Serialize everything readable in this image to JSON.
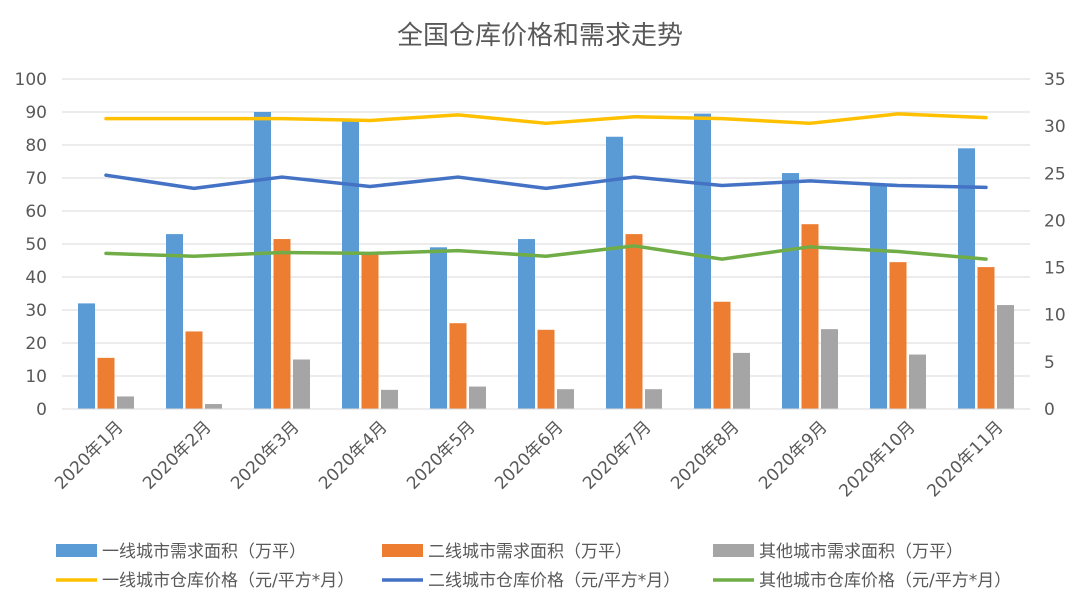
{
  "chart_data": {
    "type": "bar",
    "title": "全国仓库价格和需求走势",
    "categories": [
      "2020年1月",
      "2020年2月",
      "2020年3月",
      "2020年4月",
      "2020年5月",
      "2020年6月",
      "2020年7月",
      "2020年8月",
      "2020年9月",
      "2020年10月",
      "2020年11月"
    ],
    "y_left": {
      "ylim": [
        0,
        100
      ],
      "ticks": [
        0,
        10,
        20,
        30,
        40,
        50,
        60,
        70,
        80,
        90,
        100
      ]
    },
    "y_right": {
      "ylim": [
        0,
        35
      ],
      "ticks": [
        0,
        5,
        10,
        15,
        20,
        25,
        30,
        35
      ]
    },
    "grid": true,
    "legend_position": "bottom",
    "bar_series": [
      {
        "name": "一线城市需求面积（万平）",
        "color": "#5b9bd5",
        "axis": "left",
        "values": [
          32,
          53,
          90,
          88,
          49,
          51.5,
          82.5,
          89.5,
          71.5,
          68,
          79
        ]
      },
      {
        "name": "二线城市需求面积（万平）",
        "color": "#ed7d31",
        "axis": "left",
        "values": [
          15.5,
          23.5,
          51.5,
          47,
          26,
          24,
          53,
          32.5,
          56,
          44.5,
          43
        ]
      },
      {
        "name": "其他城市需求面积（万平）",
        "color": "#a5a5a5",
        "axis": "left",
        "values": [
          3.8,
          1.5,
          15,
          5.8,
          6.8,
          6,
          6,
          17,
          24.2,
          16.5,
          31.5
        ]
      }
    ],
    "line_series": [
      {
        "name": "一线城市仓库价格（元/平方*月）",
        "color": "#ffc000",
        "axis": "right",
        "values": [
          30.8,
          30.8,
          30.8,
          30.6,
          31.2,
          30.3,
          31.0,
          30.8,
          30.3,
          31.3,
          30.9
        ]
      },
      {
        "name": "二线城市仓库价格（元/平方*月）",
        "color": "#4472c4",
        "axis": "right",
        "values": [
          24.8,
          23.4,
          24.6,
          23.6,
          24.6,
          23.4,
          24.6,
          23.7,
          24.2,
          23.7,
          23.5
        ]
      },
      {
        "name": "其他城市仓库价格（元/平方*月）",
        "color": "#70ad47",
        "axis": "right",
        "values": [
          16.5,
          16.2,
          16.6,
          16.5,
          16.8,
          16.2,
          17.3,
          15.9,
          17.2,
          16.7,
          15.9
        ]
      }
    ]
  }
}
